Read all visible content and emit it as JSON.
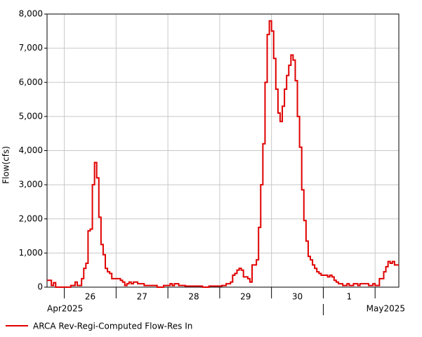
{
  "chart_data": {
    "type": "step",
    "y_label": "Flow(cfs)",
    "day_labels": [
      "26",
      "27",
      "28",
      "29",
      "30",
      "1"
    ],
    "month_labels": [
      "Apr2025",
      "May2025"
    ],
    "ylim": [
      0,
      8000
    ],
    "yticks": [
      0,
      {
        "value": 1000,
        "label": "1,000"
      },
      {
        "value": 2000,
        "label": "2,000"
      },
      {
        "value": 3000,
        "label": "3,000"
      },
      {
        "value": 4000,
        "label": "4,000"
      },
      {
        "value": 5000,
        "label": "5,000"
      },
      {
        "value": 6000,
        "label": "6,000"
      },
      {
        "value": 7000,
        "label": "7,000"
      },
      {
        "value": 8000,
        "label": "8,000"
      }
    ],
    "grid": true,
    "legend": "bottom-left",
    "series": [
      {
        "name": "ARCA Rev-Regi-Computed Flow-Res In",
        "color": "#e00000",
        "values": [
          200,
          200,
          50,
          130,
          0,
          0,
          0,
          0,
          0,
          0,
          0,
          50,
          50,
          150,
          50,
          50,
          250,
          550,
          700,
          1650,
          1700,
          3000,
          3650,
          3200,
          2050,
          1250,
          950,
          550,
          450,
          400,
          250,
          250,
          250,
          250,
          200,
          150,
          50,
          100,
          150,
          100,
          150,
          150,
          100,
          100,
          100,
          50,
          50,
          50,
          50,
          50,
          50,
          0,
          0,
          0,
          50,
          50,
          50,
          100,
          50,
          100,
          100,
          50,
          50,
          50,
          30,
          30,
          30,
          30,
          30,
          30,
          30,
          30,
          0,
          0,
          0,
          30,
          30,
          30,
          30,
          30,
          30,
          50,
          50,
          100,
          100,
          150,
          350,
          400,
          500,
          550,
          500,
          300,
          300,
          250,
          150,
          650,
          650,
          800,
          1750,
          3000,
          4200,
          6000,
          7400,
          7800,
          7500,
          6700,
          5800,
          5100,
          4850,
          5300,
          5800,
          6200,
          6500,
          6800,
          6650,
          6050,
          5000,
          4100,
          2850,
          1950,
          1350,
          900,
          800,
          650,
          550,
          450,
          400,
          350,
          350,
          350,
          300,
          350,
          300,
          200,
          150,
          100,
          100,
          50,
          50,
          100,
          50,
          50,
          100,
          100,
          50,
          100,
          100,
          100,
          100,
          50,
          50,
          100,
          50,
          50,
          250,
          250,
          450,
          600,
          750,
          700,
          750,
          650,
          650
        ]
      }
    ]
  }
}
